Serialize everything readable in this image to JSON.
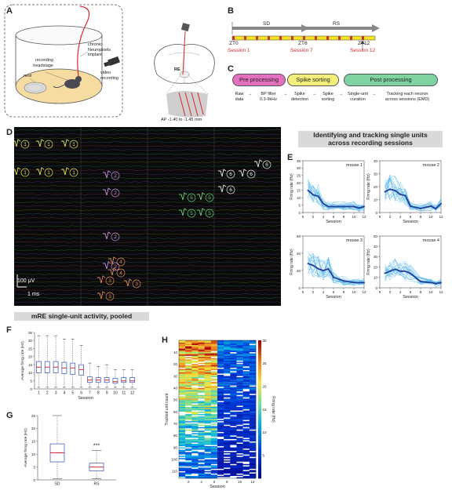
{
  "panels": {
    "a": "A",
    "b": "B",
    "c": "C",
    "d": "D",
    "e": "E",
    "f": "F",
    "g": "G",
    "h": "H"
  },
  "panel_a": {
    "labels": {
      "recording_headstage": "recording\nheadstage",
      "chronic_implant": "chronic\nNeuropixels\nimplant",
      "nest": "nest",
      "video_recording": "video\nrecording",
      "re_label": "RE",
      "ap_label": "AP -1.40 to -1.45 mm"
    }
  },
  "panel_b": {
    "sd_label": "SD",
    "rs_label": "RS",
    "zt0": "ZT0",
    "zt6": "ZT6",
    "zt12": "ZT12",
    "session1": "Session 1",
    "session7": "Session 7",
    "session12": "Session 12",
    "colors": {
      "sd_bar": "#aaaaaa",
      "track": "#f7e224",
      "marks": "#c0392b",
      "session_text": "#d62728"
    }
  },
  "panel_c": {
    "stage1": "Pre processing",
    "stage2": "Spike sorting",
    "stage3": "Post processing",
    "steps": [
      "Raw\ndata",
      "BP filter\n0.3-9kHz",
      "Spike\ndetection",
      "Spike\nsorting",
      "Single-unit\ncuration",
      "Tracking each neuron\nacross sessions (EMD)"
    ],
    "colors": {
      "stage1": "#e56fbf",
      "stage2": "#f4ef7a",
      "stage3": "#7fd3a0"
    }
  },
  "panel_d": {
    "scale_uv": "100 μV",
    "scale_ms": "1 ms",
    "unit_ids": [
      "1",
      "1",
      "1",
      "1",
      "1",
      "1",
      "2",
      "2",
      "2",
      "2",
      "3",
      "3",
      "3",
      "4",
      "4",
      "5",
      "5",
      "5",
      "5",
      "6",
      "6",
      "6",
      "6"
    ]
  },
  "banner_tracking": "Identifying and tracking single units\nacross recording sessions",
  "banner_pooled": "mRE single-unit activity, pooled",
  "panel_e": {
    "mice": [
      {
        "name": "mouse 1",
        "ylim": [
          0,
          35
        ],
        "yticks": [
          "0",
          "5",
          "10",
          "15",
          "20",
          "25",
          "30",
          "35"
        ],
        "mean": [
          15,
          12,
          11,
          6,
          4,
          4,
          4,
          4,
          3,
          4
        ]
      },
      {
        "name": "mouse 2",
        "ylim": [
          0,
          40
        ],
        "yticks": [
          "0",
          "10",
          "20",
          "30",
          "40"
        ],
        "mean": [
          16,
          18,
          17,
          14,
          13,
          5,
          3,
          5,
          3,
          7
        ]
      },
      {
        "name": "mouse 3",
        "ylim": [
          0,
          60
        ],
        "yticks": [
          "0",
          "20",
          "40",
          "60"
        ],
        "mean": [
          28,
          26,
          22,
          20,
          22,
          12,
          8,
          6,
          6,
          6
        ]
      },
      {
        "name": "mouse 4",
        "ylim": [
          0,
          50
        ],
        "yticks": [
          "0",
          "10",
          "20",
          "30",
          "40",
          "50"
        ],
        "mean": [
          14,
          16,
          18,
          16,
          16,
          14,
          6,
          5,
          4,
          5
        ]
      }
    ],
    "sessions": [
      1,
      2,
      3,
      4,
      5,
      6,
      8,
      10,
      11,
      12
    ],
    "xticks": [
      "0",
      "2",
      "4",
      "6",
      "8",
      "10",
      "12"
    ],
    "xlabel": "Session",
    "ylabel": "Firing rate (Hz)",
    "colors": {
      "mean": "#1f3f9a",
      "individual": "#4fb3e8"
    }
  },
  "chart_data": [
    {
      "type": "box",
      "panel": "F",
      "categories": [
        "1",
        "2",
        "3",
        "4",
        "5",
        "6",
        "7",
        "8",
        "9",
        "10",
        "11",
        "12"
      ],
      "xlabel": "Session",
      "ylabel": "Average firing rate (Hz)",
      "ylim": [
        0,
        35
      ],
      "yticks": [
        "0",
        "5",
        "10",
        "15",
        "20",
        "25",
        "30",
        "35"
      ],
      "medians": [
        13.5,
        13.5,
        13.5,
        13,
        13,
        12,
        5.5,
        5.5,
        5.5,
        4.5,
        5,
        5
      ],
      "q1": [
        10,
        10,
        10,
        9.5,
        9,
        8.5,
        4,
        4,
        4,
        3.5,
        4,
        4
      ],
      "q3": [
        17,
        17,
        17,
        16.5,
        16,
        15,
        7.5,
        7,
        7,
        6.5,
        7,
        7
      ],
      "whisker_low": [
        1,
        1,
        1,
        1,
        1,
        1,
        1,
        1,
        1,
        1,
        1,
        1
      ],
      "whisker_high": [
        33,
        33,
        33,
        31,
        31,
        27,
        16,
        14,
        15,
        12,
        12,
        12
      ]
    },
    {
      "type": "box",
      "panel": "G",
      "categories": [
        "SD",
        "RS"
      ],
      "ylabel": "Average firing rate (Hz)",
      "ylim": [
        0,
        25
      ],
      "yticks": [
        "0",
        "5",
        "10",
        "15",
        "20",
        "25"
      ],
      "medians": [
        10.5,
        5
      ],
      "q1": [
        7,
        3.5
      ],
      "q3": [
        14,
        6.5
      ],
      "whisker_low": [
        0.5,
        0.5
      ],
      "whisker_high": [
        25,
        11.5
      ],
      "annotation": "***"
    },
    {
      "type": "heatmap",
      "panel": "H",
      "xlabel": "Session",
      "ylabel": "Tracked unit count",
      "colorbar_label": "Firing rate (Hz)",
      "xticks": [
        "2",
        "4",
        "6",
        "8",
        "10",
        "12"
      ],
      "yticks": [
        "10",
        "20",
        "30",
        "40",
        "50",
        "60",
        "70",
        "80",
        "90",
        "100",
        "110"
      ],
      "colorbar_ticks": [
        "5",
        "10",
        "15",
        "20",
        "25",
        "30"
      ],
      "zlim": [
        0,
        30
      ],
      "n_units": 116,
      "n_sessions": 12
    }
  ]
}
